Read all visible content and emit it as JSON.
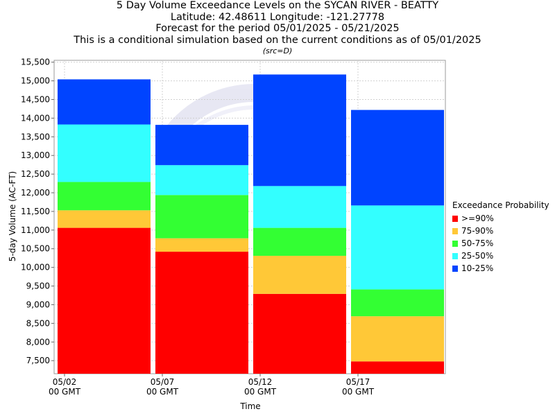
{
  "header": {
    "title_lines": [
      "5 Day Volume Exceedance Levels on the SYCAN RIVER - BEATTY",
      "Latitude: 42.48611 Longitude: -121.27778",
      "Forecast for the period 05/01/2025 - 05/21/2025",
      "This is a conditional simulation based on the current conditions as of 05/01/2025"
    ],
    "source": "(src=D)"
  },
  "chart_data": {
    "type": "bar",
    "stacked": true,
    "xlabel": "Time",
    "ylabel": "5-day Volume (AC-FT)",
    "ylim": [
      7150,
      15550
    ],
    "yticks": [
      7500,
      8000,
      8500,
      9000,
      9500,
      10000,
      10500,
      11000,
      11500,
      12000,
      12500,
      13000,
      13500,
      14000,
      14500,
      15000,
      15500
    ],
    "ytick_labels": [
      "7,500",
      "8,000",
      "8,500",
      "9,000",
      "9,500",
      "10,000",
      "10,500",
      "11,000",
      "11,500",
      "12,000",
      "12,500",
      "13,000",
      "13,500",
      "14,000",
      "14,500",
      "15,000",
      "15,500"
    ],
    "xticks": [
      {
        "line1": "05/02",
        "line2": "00 GMT"
      },
      {
        "line1": "05/07",
        "line2": "00 GMT"
      },
      {
        "line1": "05/12",
        "line2": "00 GMT"
      },
      {
        "line1": "05/17",
        "line2": "00 GMT"
      }
    ],
    "grid": true,
    "legend_position": "right",
    "legend_title": "Exceedance Probability",
    "series": [
      {
        "name": ">=90%",
        "color": "#ff0000"
      },
      {
        "name": "75-90%",
        "color": "#ffc837"
      },
      {
        "name": "50-75%",
        "color": "#33ff33"
      },
      {
        "name": "25-50%",
        "color": "#33ffff"
      },
      {
        "name": "10-25%",
        "color": "#0044ff"
      }
    ],
    "bars": [
      {
        "period": "05/02 - 05/07",
        "levels": [
          11060,
          11530,
          12290,
          13830,
          15040
        ]
      },
      {
        "period": "05/07 - 05/12",
        "levels": [
          10420,
          10780,
          11940,
          12740,
          13820
        ]
      },
      {
        "period": "05/12 - 05/17",
        "levels": [
          9290,
          10310,
          11060,
          12180,
          15170
        ]
      },
      {
        "period": "05/17 - 05/22",
        "levels": [
          7480,
          8690,
          9410,
          11660,
          14220
        ]
      }
    ]
  }
}
